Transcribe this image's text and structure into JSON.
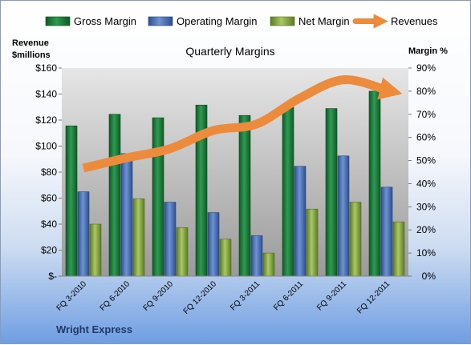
{
  "chart_data": {
    "type": "bar",
    "title": "Quarterly Margins",
    "company": "Wright Express",
    "categories": [
      "FQ 3-2010",
      "FQ 6-2010",
      "FQ 9-2010",
      "FQ 12-2010",
      "FQ 3-2011",
      "FQ 6-2011",
      "FQ 9-2011",
      "FQ 12-2011"
    ],
    "series": [
      {
        "name": "Gross Margin",
        "axis": "right",
        "color": "#1f7a3c",
        "values": [
          65,
          70,
          68.5,
          74,
          69.5,
          73,
          72.5,
          80
        ]
      },
      {
        "name": "Operating Margin",
        "axis": "right",
        "color": "#4a72b8",
        "values": [
          36.5,
          53,
          32,
          27.5,
          17.5,
          47.5,
          52,
          38.5
        ]
      },
      {
        "name": "Net Margin",
        "axis": "right",
        "color": "#8fb04a",
        "values": [
          22.5,
          33.5,
          21,
          16,
          10,
          29,
          32,
          23.5
        ]
      }
    ],
    "line_series": {
      "name": "Revenues",
      "axis": "left",
      "color": "#ed8b3c",
      "values": [
        83,
        91,
        98,
        112,
        117,
        137,
        151,
        143
      ]
    },
    "left_axis": {
      "label": "Revenue $millions",
      "ticks": [
        "$-",
        "$20",
        "$40",
        "$60",
        "$80",
        "$100",
        "$120",
        "$140",
        "$160"
      ],
      "ylim": [
        0,
        160
      ]
    },
    "right_axis": {
      "label": "Margin %",
      "ticks": [
        "0%",
        "10%",
        "20%",
        "30%",
        "40%",
        "50%",
        "60%",
        "70%",
        "80%",
        "90%"
      ],
      "ylim": [
        0,
        90
      ]
    },
    "grid": false,
    "legend_position": "top"
  }
}
